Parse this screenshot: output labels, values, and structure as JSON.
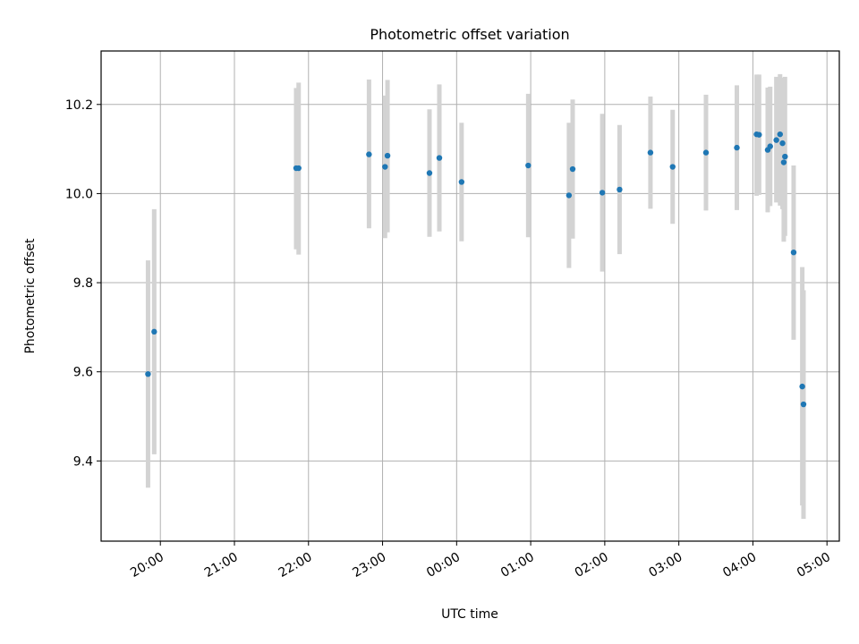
{
  "chart_data": {
    "type": "scatter",
    "title": "Photometric offset variation",
    "xlabel": "UTC time",
    "ylabel": "Photometric offset",
    "x_axis": "time",
    "xlim": [
      "19:12",
      "05:10"
    ],
    "ylim": [
      9.22,
      10.32
    ],
    "grid": true,
    "x_ticks": [
      "20:00",
      "21:00",
      "22:00",
      "23:00",
      "00:00",
      "01:00",
      "02:00",
      "03:00",
      "04:00",
      "05:00"
    ],
    "y_ticks": [
      "9.4",
      "9.6",
      "9.8",
      "10.0",
      "10.2"
    ],
    "colors": {
      "point": "#1f77b4",
      "error_bar": "#d3d3d3",
      "grid": "#b0b0b0",
      "axes": "#000000"
    },
    "series": [
      {
        "points": [
          {
            "x": "19:50",
            "y": 9.595,
            "ylow": 9.34,
            "yhigh": 9.85
          },
          {
            "x": "19:55",
            "y": 9.69,
            "ylow": 9.415,
            "yhigh": 9.965
          },
          {
            "x": "21:50",
            "y": 10.057,
            "ylow": 9.875,
            "yhigh": 10.237
          },
          {
            "x": "21:52",
            "y": 10.057,
            "ylow": 9.863,
            "yhigh": 10.249
          },
          {
            "x": "22:49",
            "y": 10.088,
            "ylow": 9.922,
            "yhigh": 10.256
          },
          {
            "x": "23:02",
            "y": 10.06,
            "ylow": 9.9,
            "yhigh": 10.22
          },
          {
            "x": "23:04",
            "y": 10.085,
            "ylow": 9.913,
            "yhigh": 10.255
          },
          {
            "x": "23:38",
            "y": 10.046,
            "ylow": 9.903,
            "yhigh": 10.189
          },
          {
            "x": "23:46",
            "y": 10.08,
            "ylow": 9.915,
            "yhigh": 10.245
          },
          {
            "x": "00:04",
            "y": 10.026,
            "ylow": 9.893,
            "yhigh": 10.159
          },
          {
            "x": "00:58",
            "y": 10.063,
            "ylow": 9.902,
            "yhigh": 10.224
          },
          {
            "x": "01:31",
            "y": 9.996,
            "ylow": 9.833,
            "yhigh": 10.159
          },
          {
            "x": "01:34",
            "y": 10.055,
            "ylow": 9.899,
            "yhigh": 10.211
          },
          {
            "x": "01:58",
            "y": 10.002,
            "ylow": 9.825,
            "yhigh": 10.179
          },
          {
            "x": "02:12",
            "y": 10.009,
            "ylow": 9.864,
            "yhigh": 10.154
          },
          {
            "x": "02:37",
            "y": 10.092,
            "ylow": 9.966,
            "yhigh": 10.218
          },
          {
            "x": "02:55",
            "y": 10.06,
            "ylow": 9.932,
            "yhigh": 10.188
          },
          {
            "x": "03:22",
            "y": 10.092,
            "ylow": 9.962,
            "yhigh": 10.222
          },
          {
            "x": "03:47",
            "y": 10.103,
            "ylow": 9.963,
            "yhigh": 10.243
          },
          {
            "x": "04:03",
            "y": 10.133,
            "ylow": 9.995,
            "yhigh": 10.267
          },
          {
            "x": "04:05",
            "y": 10.132,
            "ylow": 9.997,
            "yhigh": 10.267
          },
          {
            "x": "04:12",
            "y": 10.098,
            "ylow": 9.958,
            "yhigh": 10.238
          },
          {
            "x": "04:14",
            "y": 10.106,
            "ylow": 9.972,
            "yhigh": 10.24
          },
          {
            "x": "04:19",
            "y": 10.12,
            "ylow": 9.98,
            "yhigh": 10.262
          },
          {
            "x": "04:22",
            "y": 10.133,
            "ylow": 9.973,
            "yhigh": 10.268
          },
          {
            "x": "04:24",
            "y": 10.113,
            "ylow": 9.965,
            "yhigh": 10.26
          },
          {
            "x": "04:25",
            "y": 10.07,
            "ylow": 9.892,
            "yhigh": 10.258
          },
          {
            "x": "04:26",
            "y": 10.083,
            "ylow": 9.905,
            "yhigh": 10.262
          },
          {
            "x": "04:33",
            "y": 9.868,
            "ylow": 9.672,
            "yhigh": 10.063
          },
          {
            "x": "04:40",
            "y": 9.567,
            "ylow": 9.3,
            "yhigh": 9.835
          },
          {
            "x": "04:41",
            "y": 9.527,
            "ylow": 9.27,
            "yhigh": 9.783
          }
        ]
      }
    ]
  }
}
